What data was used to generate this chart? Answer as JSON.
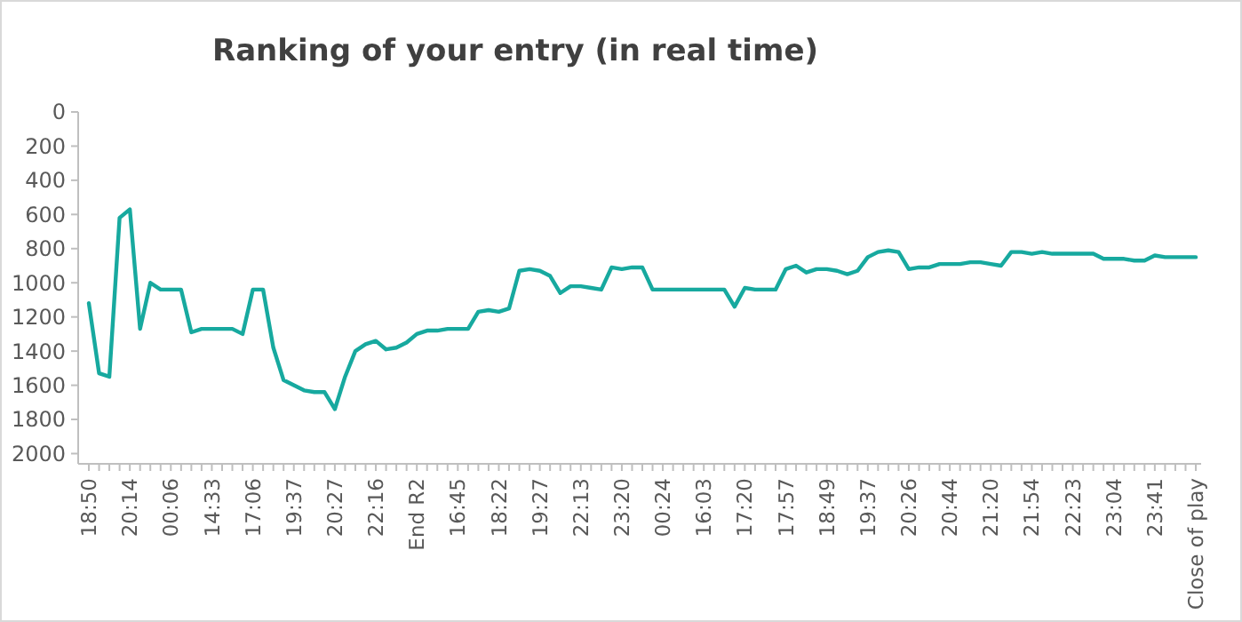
{
  "chart_data": {
    "type": "line",
    "title": "Ranking of your entry (in real time)",
    "categories": [
      "18:50",
      null,
      null,
      null,
      "20:14",
      null,
      null,
      null,
      "00:06",
      null,
      null,
      null,
      "14:33",
      null,
      null,
      null,
      "17:06",
      null,
      null,
      null,
      "19:37",
      null,
      null,
      null,
      "20:27",
      null,
      null,
      null,
      "22:16",
      null,
      null,
      null,
      "End R2",
      null,
      null,
      null,
      "16:45",
      null,
      null,
      null,
      "18:22",
      null,
      null,
      null,
      "19:27",
      null,
      null,
      null,
      "22:13",
      null,
      null,
      null,
      "23:20",
      null,
      null,
      null,
      "00:24",
      null,
      null,
      null,
      "16:03",
      null,
      null,
      null,
      "17:20",
      null,
      null,
      null,
      "17:57",
      null,
      null,
      null,
      "18:49",
      null,
      null,
      null,
      "19:37",
      null,
      null,
      null,
      "20:26",
      null,
      null,
      null,
      "20:44",
      null,
      null,
      null,
      "21:20",
      null,
      null,
      null,
      "21:54",
      null,
      null,
      null,
      "22:23",
      null,
      null,
      null,
      "23:04",
      null,
      null,
      null,
      "23:41",
      null,
      null,
      null,
      "Close of play"
    ],
    "series": [
      {
        "color": "#17a99f",
        "values": [
          1120,
          1530,
          1550,
          620,
          570,
          1270,
          1000,
          1040,
          1040,
          1040,
          1290,
          1270,
          1270,
          1270,
          1270,
          1300,
          1040,
          1040,
          1380,
          1570,
          1600,
          1630,
          1640,
          1640,
          1740,
          1550,
          1400,
          1360,
          1340,
          1390,
          1380,
          1350,
          1300,
          1280,
          1280,
          1270,
          1270,
          1270,
          1170,
          1160,
          1170,
          1150,
          930,
          920,
          930,
          960,
          1060,
          1020,
          1020,
          1030,
          1040,
          910,
          920,
          910,
          910,
          1040,
          1040,
          1040,
          1040,
          1040,
          1040,
          1040,
          1040,
          1140,
          1030,
          1040,
          1040,
          1040,
          920,
          900,
          940,
          920,
          920,
          930,
          950,
          930,
          850,
          820,
          810,
          820,
          920,
          910,
          910,
          890,
          890,
          890,
          880,
          880,
          890,
          900,
          820,
          820,
          830,
          820,
          830,
          830,
          830,
          830,
          830,
          860,
          860,
          860,
          870,
          870,
          840,
          850,
          850,
          850,
          850
        ]
      }
    ],
    "ylim": [
      2060,
      0
    ],
    "yticks": [
      0,
      200,
      400,
      600,
      800,
      1000,
      1200,
      1400,
      1600,
      1800,
      2000
    ],
    "grid": false,
    "marker": "none",
    "line_style": "solid"
  }
}
